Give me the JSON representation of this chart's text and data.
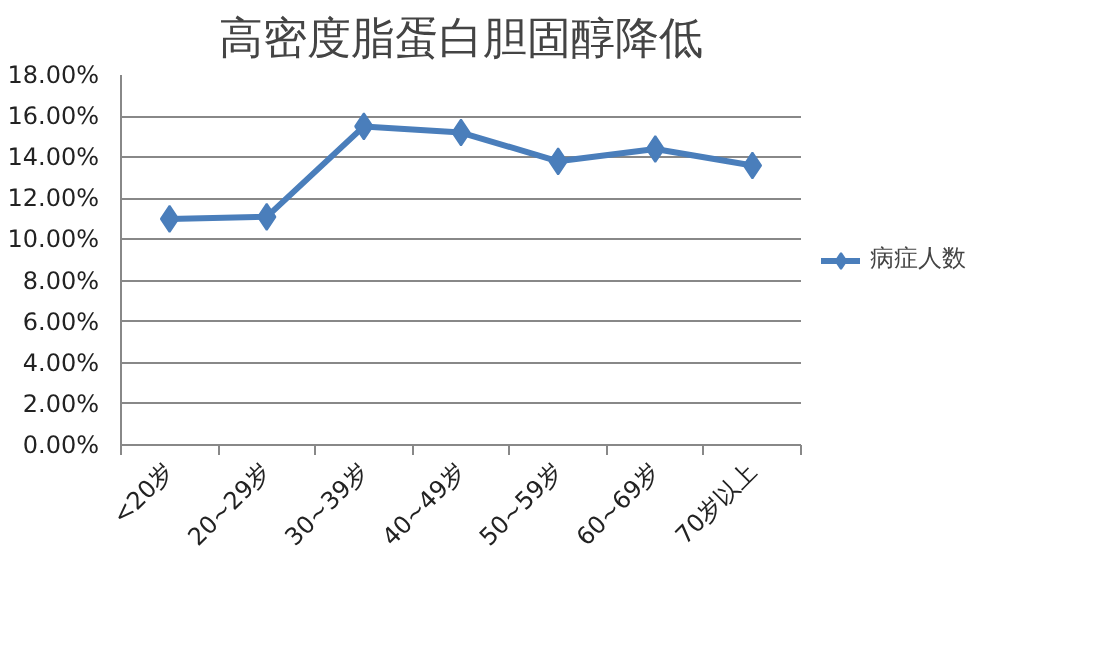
{
  "chart_data": {
    "type": "line",
    "title": "高密度脂蛋白胆固醇降低",
    "categories": [
      "<20岁",
      "20~29岁",
      "30~39岁",
      "40~49岁",
      "50~59岁",
      "60~69岁",
      "70岁以上"
    ],
    "series": [
      {
        "name": "病症人数",
        "color": "#4a7ebb",
        "values": [
          11.0,
          11.1,
          15.5,
          15.2,
          13.8,
          14.4,
          13.6
        ]
      }
    ],
    "ylim": [
      0,
      18
    ],
    "yticks": [
      {
        "value": 0,
        "label": "0.00%"
      },
      {
        "value": 2,
        "label": "2.00%"
      },
      {
        "value": 4,
        "label": "4.00%"
      },
      {
        "value": 6,
        "label": "6.00%"
      },
      {
        "value": 8,
        "label": "8.00%"
      },
      {
        "value": 10,
        "label": "10.00%"
      },
      {
        "value": 12,
        "label": "12.00%"
      },
      {
        "value": 14,
        "label": "14.00%"
      },
      {
        "value": 16,
        "label": "16.00%"
      },
      {
        "value": 18,
        "label": "18.00%"
      }
    ],
    "grid": "y",
    "legend": "right",
    "marker": "diamond",
    "line_style": "solid"
  }
}
